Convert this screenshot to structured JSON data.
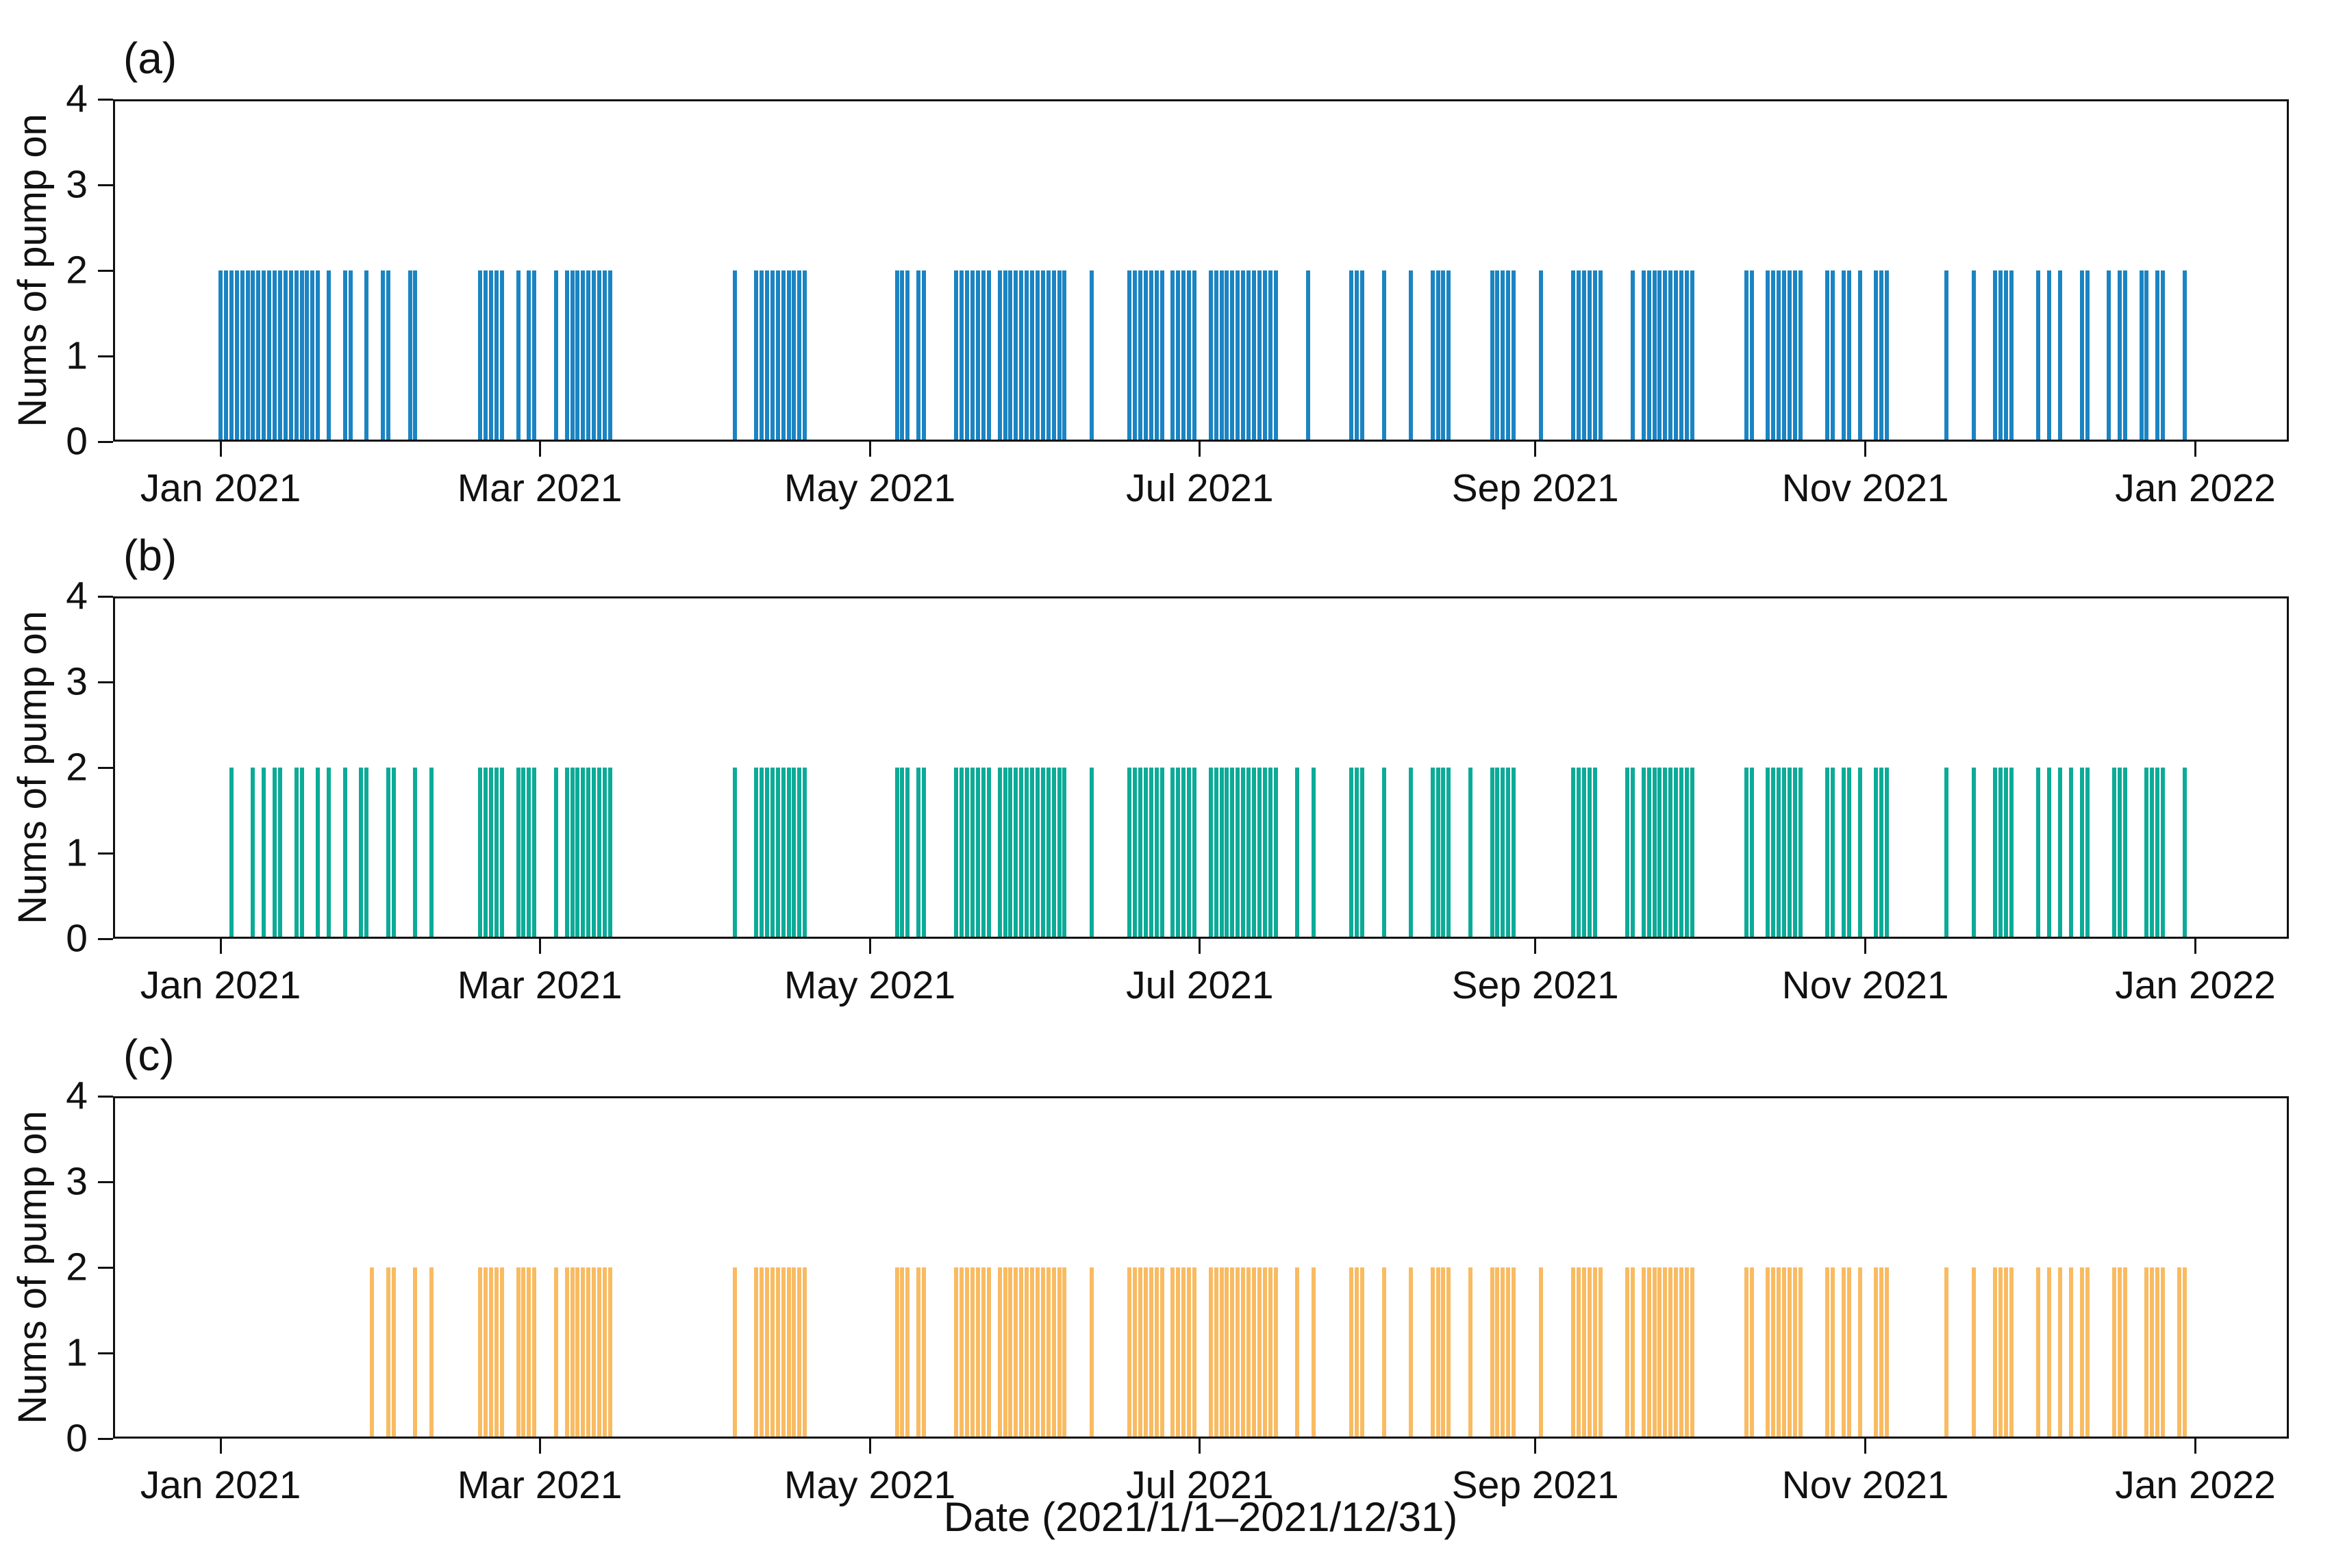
{
  "figure": {
    "xlabel": "Date (2021/1/1–2021/12/31)",
    "ylabel": "Nums of pump on",
    "background_color": "#ffffff",
    "axis_color": "#111111"
  },
  "axis": {
    "y_tick_labels": [
      "0",
      "1",
      "2",
      "3",
      "4"
    ],
    "ylim": [
      0,
      4
    ],
    "x_tick_labels": [
      "Jan 2021",
      "Mar 2021",
      "May 2021",
      "Jul 2021",
      "Sep 2021",
      "Nov 2021",
      "Jan 2022"
    ],
    "x_tick_days": [
      1,
      60,
      121,
      182,
      244,
      305,
      366
    ],
    "grid": "off",
    "legend": "none"
  },
  "chart_data": [
    {
      "type": "bar",
      "panel_label": "(a)",
      "color": "#1b84c2",
      "bar_value": 2,
      "x_unit": "day of year 2021",
      "on_days": [
        1,
        2,
        3,
        4,
        5,
        6,
        7,
        8,
        9,
        10,
        11,
        12,
        13,
        14,
        15,
        16,
        17,
        18,
        19,
        21,
        24,
        25,
        28,
        31,
        32,
        36,
        37,
        49,
        50,
        51,
        52,
        53,
        56,
        58,
        59,
        63,
        65,
        66,
        67,
        68,
        69,
        70,
        71,
        72,
        73,
        96,
        100,
        101,
        102,
        103,
        104,
        105,
        106,
        107,
        108,
        109,
        126,
        127,
        128,
        130,
        131,
        137,
        138,
        139,
        140,
        141,
        142,
        143,
        145,
        146,
        147,
        148,
        149,
        150,
        151,
        152,
        153,
        154,
        155,
        156,
        157,
        162,
        169,
        170,
        171,
        172,
        173,
        174,
        175,
        177,
        178,
        179,
        180,
        181,
        184,
        185,
        186,
        187,
        188,
        189,
        190,
        191,
        192,
        193,
        194,
        195,
        196,
        202,
        210,
        211,
        212,
        216,
        221,
        225,
        226,
        227,
        228,
        236,
        237,
        238,
        239,
        240,
        245,
        251,
        252,
        253,
        254,
        255,
        256,
        262,
        264,
        265,
        266,
        267,
        268,
        269,
        270,
        271,
        272,
        273,
        283,
        284,
        287,
        288,
        289,
        290,
        291,
        292,
        293,
        298,
        299,
        301,
        302,
        304,
        307,
        308,
        309,
        320,
        325,
        329,
        330,
        331,
        332,
        337,
        339,
        341,
        345,
        346,
        350,
        352,
        353,
        356,
        357,
        359,
        360,
        364
      ]
    },
    {
      "type": "bar",
      "panel_label": "(b)",
      "color": "#0cab97",
      "bar_value": 2,
      "x_unit": "day of year 2021",
      "on_days": [
        3,
        7,
        9,
        11,
        12,
        15,
        16,
        19,
        21,
        24,
        27,
        28,
        32,
        33,
        37,
        40,
        49,
        50,
        51,
        52,
        53,
        56,
        57,
        58,
        59,
        63,
        65,
        66,
        67,
        68,
        69,
        70,
        71,
        72,
        73,
        96,
        100,
        101,
        102,
        103,
        104,
        105,
        106,
        107,
        108,
        109,
        126,
        127,
        128,
        130,
        131,
        137,
        138,
        139,
        140,
        141,
        142,
        143,
        145,
        146,
        147,
        148,
        149,
        150,
        151,
        152,
        153,
        154,
        155,
        156,
        157,
        162,
        169,
        170,
        171,
        172,
        173,
        174,
        175,
        177,
        178,
        179,
        180,
        181,
        184,
        185,
        186,
        187,
        188,
        189,
        190,
        191,
        192,
        193,
        194,
        195,
        196,
        200,
        203,
        210,
        211,
        212,
        216,
        221,
        225,
        226,
        227,
        228,
        232,
        236,
        237,
        238,
        239,
        240,
        251,
        252,
        253,
        254,
        255,
        261,
        262,
        264,
        265,
        266,
        267,
        268,
        269,
        270,
        271,
        272,
        273,
        283,
        284,
        287,
        288,
        289,
        290,
        291,
        292,
        293,
        298,
        299,
        301,
        302,
        304,
        307,
        308,
        309,
        320,
        325,
        329,
        330,
        331,
        332,
        337,
        339,
        341,
        343,
        345,
        346,
        351,
        352,
        353,
        357,
        358,
        359,
        360,
        364
      ]
    },
    {
      "type": "bar",
      "panel_label": "(c)",
      "color": "#f9bb62",
      "bar_value": 2,
      "x_unit": "day of year 2021",
      "on_days": [
        29,
        32,
        33,
        37,
        40,
        49,
        50,
        51,
        52,
        53,
        56,
        57,
        58,
        59,
        63,
        65,
        66,
        67,
        68,
        69,
        70,
        71,
        72,
        73,
        96,
        100,
        101,
        102,
        103,
        104,
        105,
        106,
        107,
        108,
        109,
        126,
        127,
        128,
        130,
        131,
        137,
        138,
        139,
        140,
        141,
        142,
        143,
        145,
        146,
        147,
        148,
        149,
        150,
        151,
        152,
        153,
        154,
        155,
        156,
        157,
        162,
        169,
        170,
        171,
        172,
        173,
        174,
        175,
        177,
        178,
        179,
        180,
        181,
        184,
        185,
        186,
        187,
        188,
        189,
        190,
        191,
        192,
        193,
        194,
        195,
        196,
        200,
        203,
        210,
        211,
        212,
        216,
        221,
        225,
        226,
        227,
        228,
        232,
        236,
        237,
        238,
        239,
        240,
        245,
        251,
        252,
        253,
        254,
        255,
        256,
        261,
        262,
        264,
        265,
        266,
        267,
        268,
        269,
        270,
        271,
        272,
        273,
        283,
        284,
        287,
        288,
        289,
        290,
        291,
        292,
        293,
        298,
        299,
        301,
        302,
        304,
        307,
        308,
        309,
        320,
        325,
        329,
        330,
        331,
        332,
        337,
        339,
        341,
        343,
        345,
        346,
        351,
        352,
        353,
        357,
        358,
        359,
        360,
        363,
        364
      ]
    }
  ]
}
